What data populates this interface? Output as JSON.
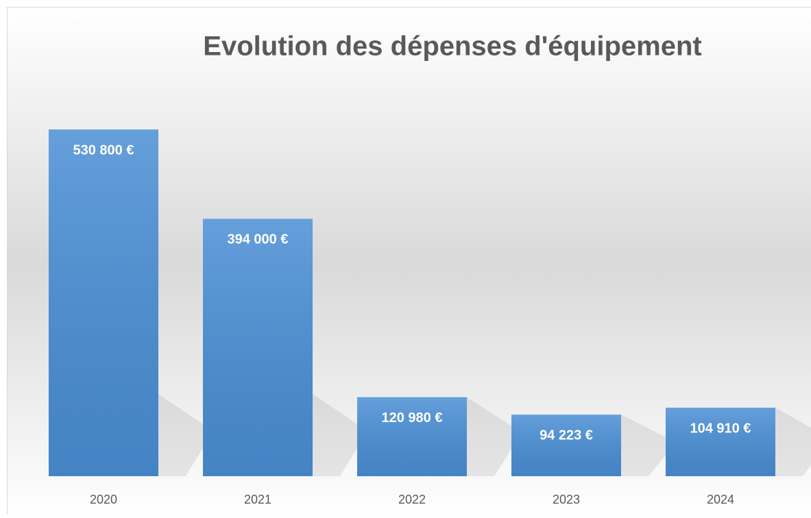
{
  "chart_data": {
    "type": "bar",
    "title": "Evolution des dépenses d'équipement",
    "categories": [
      "2020",
      "2021",
      "2022",
      "2023",
      "2024"
    ],
    "values": [
      530800,
      394000,
      120980,
      94223,
      104910
    ],
    "value_labels": [
      "530 800 €",
      "394 000 €",
      "120 980 €",
      "94 223 €",
      "104 910 €"
    ],
    "color": "#4a8fd6",
    "ylim": [
      0,
      600000
    ]
  }
}
